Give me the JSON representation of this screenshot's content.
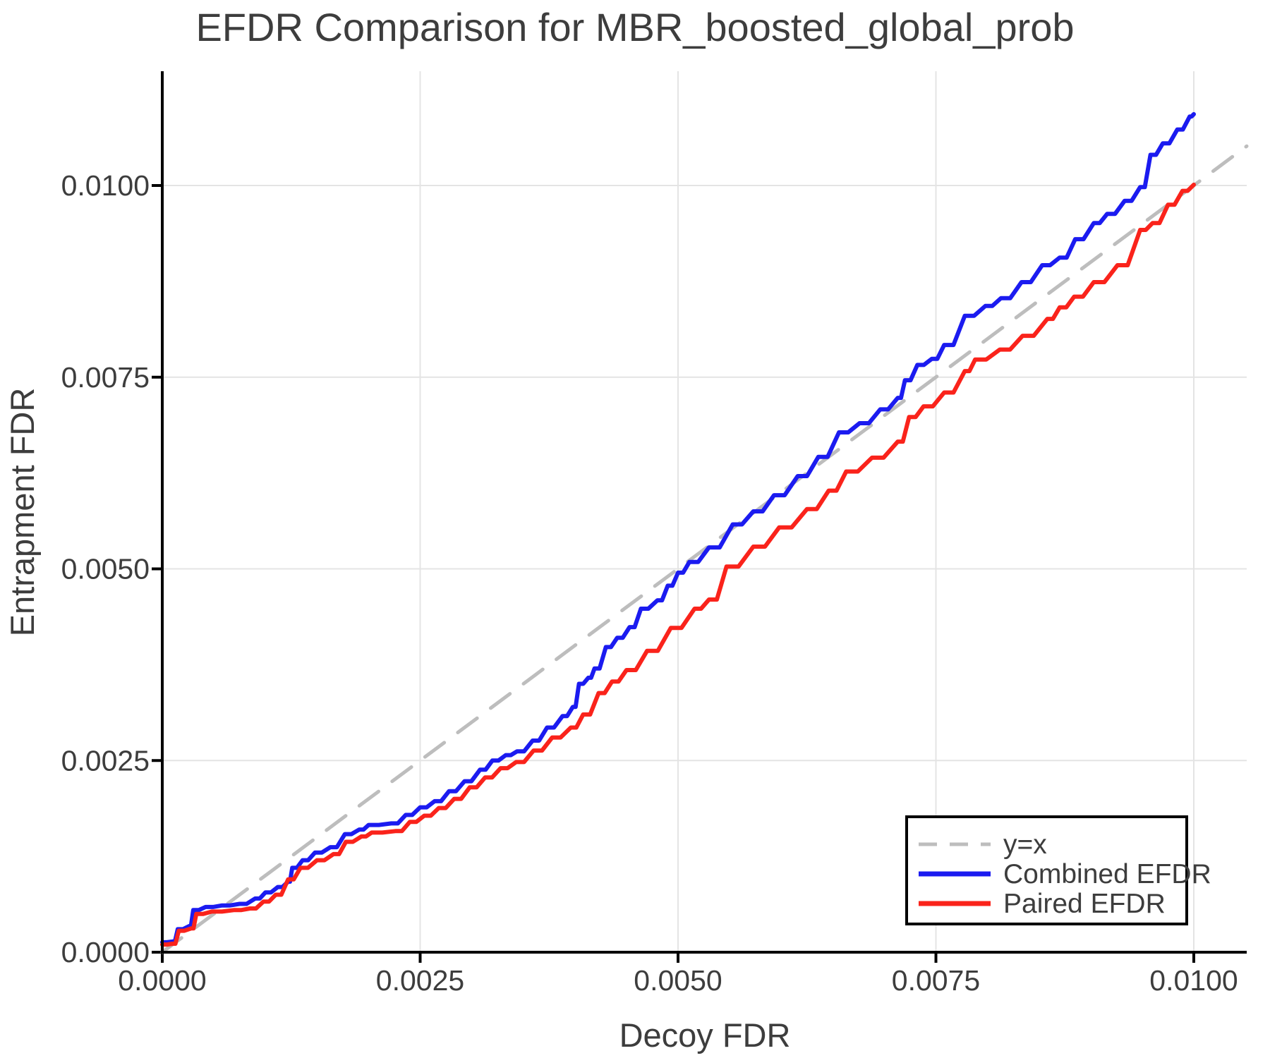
{
  "chart_data": {
    "type": "line",
    "title": "EFDR Comparison for MBR_boosted_global_prob",
    "xlabel": "Decoy FDR",
    "ylabel": "Entrapment FDR",
    "xlim": [
      0.0,
      0.010513
    ],
    "ylim": [
      0.0,
      0.01149
    ],
    "grid": true,
    "legend_position": "lower right",
    "colors": {
      "identity_line": "#bdbdbd",
      "combined": "#1b1bf0",
      "paired": "#fa231b",
      "grid": "#e4e4e4",
      "text": "#3d3d3d",
      "spine": "#000000"
    },
    "x_ticks": [
      0.0,
      0.0025,
      0.005,
      0.0075,
      0.01
    ],
    "x_tick_labels": [
      "0.0000",
      "0.0025",
      "0.0050",
      "0.0075",
      "0.0100"
    ],
    "y_ticks": [
      0.0,
      0.0025,
      0.005,
      0.0075,
      0.01
    ],
    "y_tick_labels": [
      "0.0000",
      "0.0025",
      "0.0050",
      "0.0075",
      "0.0100"
    ],
    "series": [
      {
        "name": "y=x",
        "style": "dashed",
        "color": "#bdbdbd",
        "width": 5,
        "points": [
          [
            0.0,
            0.0
          ],
          [
            0.010513,
            0.010513
          ]
        ]
      },
      {
        "name": "Combined EFDR",
        "style": "solid",
        "color": "#1b1bf0",
        "width": 6,
        "points": [
          [
            0.0,
            0.00013
          ],
          [
            0.0001,
            0.00014
          ],
          [
            0.00015,
            0.0003
          ],
          [
            0.00026,
            0.00034
          ],
          [
            0.0003,
            0.00055
          ],
          [
            0.00042,
            0.00059
          ],
          [
            0.00058,
            0.00061
          ],
          [
            0.00075,
            0.00063
          ],
          [
            0.0009,
            0.0007
          ],
          [
            0.001,
            0.00078
          ],
          [
            0.00112,
            0.00085
          ],
          [
            0.00122,
            0.00092
          ],
          [
            0.00126,
            0.0011
          ],
          [
            0.00136,
            0.0012
          ],
          [
            0.00148,
            0.0013
          ],
          [
            0.00163,
            0.00137
          ],
          [
            0.00177,
            0.00154
          ],
          [
            0.00191,
            0.0016
          ],
          [
            0.002,
            0.00166
          ],
          [
            0.00222,
            0.00168
          ],
          [
            0.00236,
            0.00179
          ],
          [
            0.0025,
            0.00189
          ],
          [
            0.00264,
            0.00197
          ],
          [
            0.00278,
            0.0021
          ],
          [
            0.00293,
            0.00223
          ],
          [
            0.00308,
            0.00238
          ],
          [
            0.0032,
            0.0025
          ],
          [
            0.00333,
            0.00257
          ],
          [
            0.00344,
            0.00262
          ],
          [
            0.00359,
            0.00276
          ],
          [
            0.00373,
            0.00293
          ],
          [
            0.00388,
            0.00308
          ],
          [
            0.00398,
            0.0032
          ],
          [
            0.00404,
            0.0035
          ],
          [
            0.00413,
            0.00358
          ],
          [
            0.00419,
            0.0037
          ],
          [
            0.0043,
            0.00398
          ],
          [
            0.00441,
            0.0041
          ],
          [
            0.00453,
            0.00424
          ],
          [
            0.00464,
            0.00448
          ],
          [
            0.0048,
            0.00459
          ],
          [
            0.0049,
            0.00478
          ],
          [
            0.005,
            0.00495
          ],
          [
            0.00511,
            0.00509
          ],
          [
            0.0053,
            0.00528
          ],
          [
            0.00553,
            0.00558
          ],
          [
            0.00573,
            0.00575
          ],
          [
            0.00593,
            0.00596
          ],
          [
            0.00616,
            0.00621
          ],
          [
            0.00636,
            0.00646
          ],
          [
            0.00656,
            0.00678
          ],
          [
            0.00676,
            0.0069
          ],
          [
            0.00696,
            0.00708
          ],
          [
            0.00713,
            0.00723
          ],
          [
            0.0072,
            0.00746
          ],
          [
            0.00732,
            0.00766
          ],
          [
            0.00746,
            0.00774
          ],
          [
            0.00758,
            0.00792
          ],
          [
            0.00778,
            0.0083
          ],
          [
            0.00798,
            0.00843
          ],
          [
            0.00813,
            0.00853
          ],
          [
            0.00833,
            0.00874
          ],
          [
            0.00853,
            0.00896
          ],
          [
            0.0087,
            0.00906
          ],
          [
            0.00885,
            0.0093
          ],
          [
            0.00903,
            0.00951
          ],
          [
            0.00916,
            0.00963
          ],
          [
            0.00933,
            0.0098
          ],
          [
            0.00948,
            0.00998
          ],
          [
            0.00958,
            0.0104
          ],
          [
            0.0097,
            0.01055
          ],
          [
            0.00984,
            0.01073
          ],
          [
            0.00996,
            0.0109
          ],
          [
            0.01,
            0.01093
          ]
        ]
      },
      {
        "name": "Paired EFDR",
        "style": "solid",
        "color": "#fa231b",
        "width": 6,
        "points": [
          [
            0.0,
            0.0001
          ],
          [
            0.0001,
            0.00011
          ],
          [
            0.00016,
            0.00028
          ],
          [
            0.00028,
            0.00031
          ],
          [
            0.00033,
            0.0005
          ],
          [
            0.00048,
            0.00053
          ],
          [
            0.0007,
            0.00055
          ],
          [
            0.00085,
            0.00057
          ],
          [
            0.00098,
            0.00066
          ],
          [
            0.0011,
            0.00075
          ],
          [
            0.00122,
            0.00095
          ],
          [
            0.00134,
            0.0011
          ],
          [
            0.0015,
            0.0012
          ],
          [
            0.00166,
            0.00128
          ],
          [
            0.00178,
            0.00144
          ],
          [
            0.00193,
            0.00151
          ],
          [
            0.00203,
            0.00156
          ],
          [
            0.00226,
            0.00158
          ],
          [
            0.0024,
            0.0017
          ],
          [
            0.00254,
            0.00178
          ],
          [
            0.00268,
            0.00188
          ],
          [
            0.00283,
            0.002
          ],
          [
            0.00298,
            0.00215
          ],
          [
            0.00313,
            0.00228
          ],
          [
            0.00328,
            0.0024
          ],
          [
            0.00343,
            0.00248
          ],
          [
            0.0036,
            0.00263
          ],
          [
            0.00378,
            0.0028
          ],
          [
            0.00396,
            0.00293
          ],
          [
            0.00408,
            0.0031
          ],
          [
            0.00423,
            0.00338
          ],
          [
            0.00436,
            0.00353
          ],
          [
            0.0045,
            0.00368
          ],
          [
            0.0047,
            0.00393
          ],
          [
            0.00493,
            0.00423
          ],
          [
            0.00516,
            0.00448
          ],
          [
            0.0053,
            0.0046
          ],
          [
            0.00547,
            0.00503
          ],
          [
            0.00573,
            0.00529
          ],
          [
            0.00598,
            0.00554
          ],
          [
            0.00625,
            0.00578
          ],
          [
            0.00646,
            0.00602
          ],
          [
            0.00663,
            0.00627
          ],
          [
            0.00688,
            0.00645
          ],
          [
            0.00713,
            0.00666
          ],
          [
            0.00724,
            0.00698
          ],
          [
            0.00738,
            0.00712
          ],
          [
            0.00758,
            0.0073
          ],
          [
            0.00778,
            0.00758
          ],
          [
            0.00788,
            0.00773
          ],
          [
            0.00812,
            0.00786
          ],
          [
            0.00834,
            0.00804
          ],
          [
            0.00858,
            0.00826
          ],
          [
            0.0087,
            0.00841
          ],
          [
            0.00884,
            0.00855
          ],
          [
            0.00903,
            0.00874
          ],
          [
            0.00926,
            0.00896
          ],
          [
            0.00948,
            0.00942
          ],
          [
            0.0096,
            0.00951
          ],
          [
            0.00975,
            0.00975
          ],
          [
            0.00989,
            0.00993
          ],
          [
            0.01,
            0.01001
          ]
        ]
      }
    ]
  }
}
